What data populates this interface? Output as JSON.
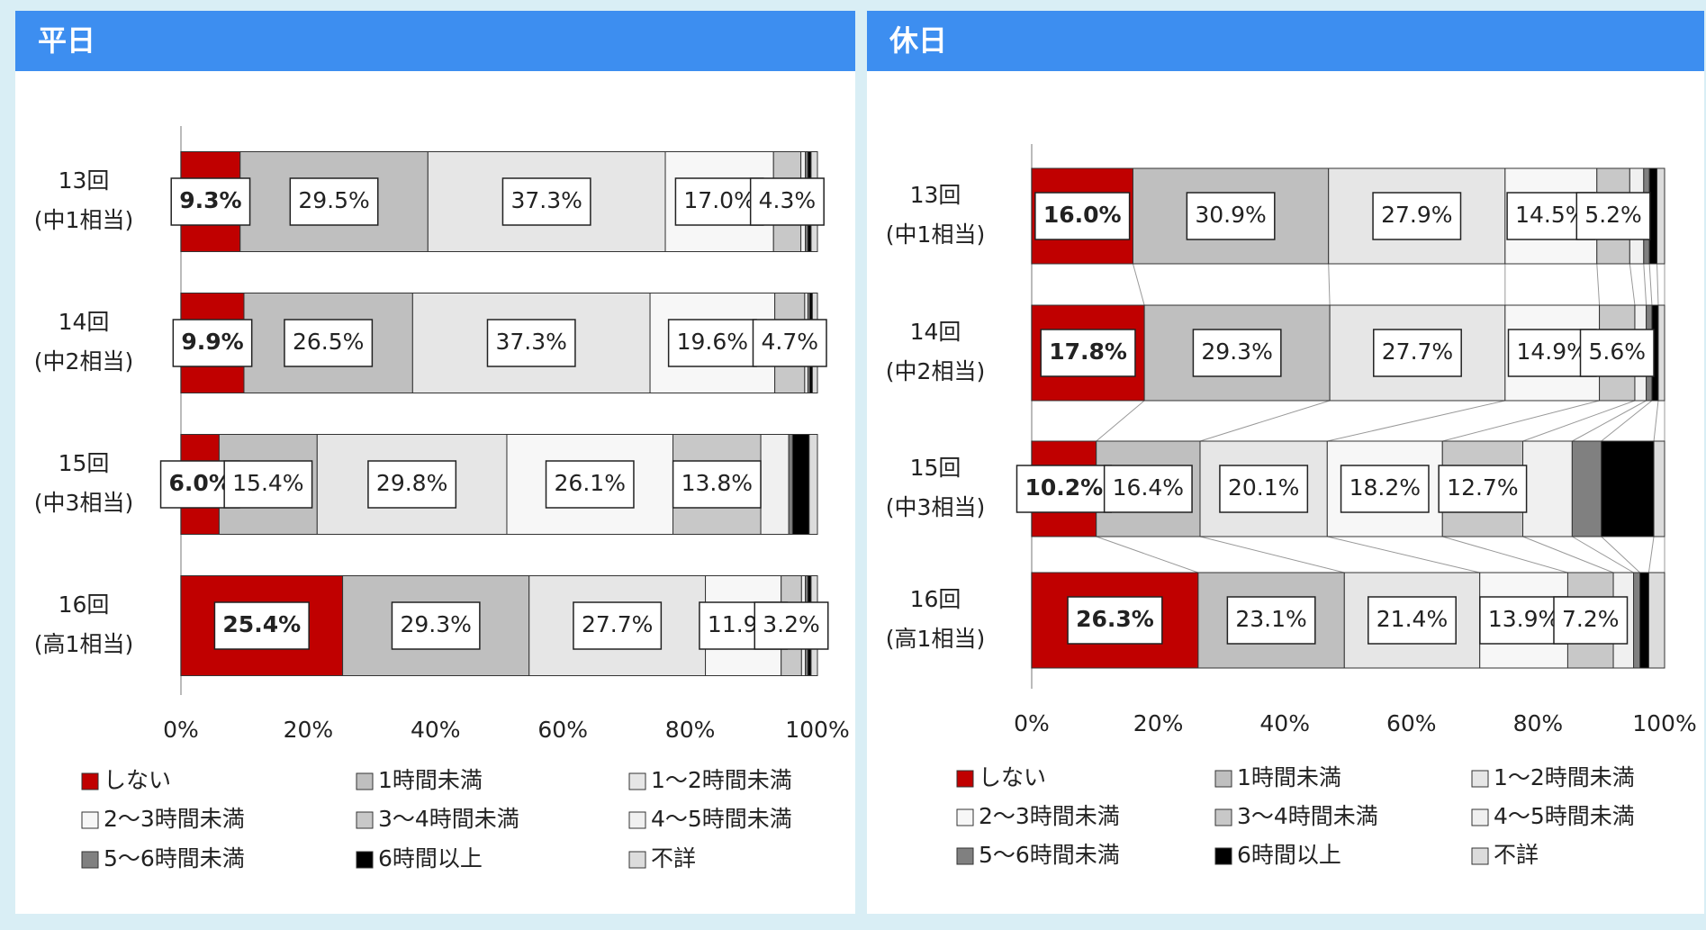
{
  "chart_data": [
    {
      "type": "bar",
      "orientation": "horizontal",
      "stacked": true,
      "connectors": false,
      "title": "平日",
      "categories": [
        [
          "13回",
          "(中1相当)"
        ],
        [
          "14回",
          "(中2相当)"
        ],
        [
          "15回",
          "(中3相当)"
        ],
        [
          "16回",
          "(高1相当)"
        ]
      ],
      "xlim": [
        0,
        100
      ],
      "xticks": [
        {
          "value": 0,
          "label": "0%"
        },
        {
          "value": 20,
          "label": "20%"
        },
        {
          "value": 40,
          "label": "40%"
        },
        {
          "value": 60,
          "label": "60%"
        },
        {
          "value": 80,
          "label": "80%"
        },
        {
          "value": 100,
          "label": "100%"
        }
      ],
      "series": [
        {
          "name": "しない",
          "color": "#c00000",
          "values": [
            9.3,
            9.9,
            6.0,
            25.4
          ],
          "value_labels": [
            "9.3%",
            "9.9%",
            "6.0%",
            "25.4%"
          ]
        },
        {
          "name": "1時間未満",
          "color": "#bfbfbf",
          "values": [
            29.5,
            26.5,
            15.4,
            29.3
          ],
          "value_labels": [
            "29.5%",
            "26.5%",
            "15.4%",
            "29.3%"
          ]
        },
        {
          "name": "1～2時間未満",
          "color": "#e6e6e6",
          "values": [
            37.3,
            37.3,
            29.8,
            27.7
          ],
          "value_labels": [
            "37.3%",
            "37.3%",
            "29.8%",
            "27.7%"
          ]
        },
        {
          "name": "2～3時間未満",
          "color": "#f7f7f7",
          "values": [
            17.0,
            19.6,
            26.1,
            11.9
          ],
          "value_labels": [
            "17.0%",
            "19.6%",
            "26.1%",
            "11.9%"
          ]
        },
        {
          "name": "3～4時間未満",
          "color": "#c8c8c8",
          "values": [
            4.3,
            4.7,
            13.8,
            3.2
          ],
          "value_labels": [
            "4.3%",
            "4.7%",
            "13.8%",
            "3.2%"
          ]
        },
        {
          "name": "4～5時間未満",
          "color": "#f0f0f0",
          "values": [
            0.7,
            0.5,
            4.4,
            0.6
          ],
          "value_labels": [
            null,
            null,
            null,
            null
          ]
        },
        {
          "name": "5～6時間未満",
          "color": "#808080",
          "values": [
            0.4,
            0.3,
            0.6,
            0.4
          ],
          "value_labels": [
            null,
            null,
            null,
            null
          ]
        },
        {
          "name": "6時間以上",
          "color": "#000000",
          "values": [
            0.5,
            0.4,
            2.6,
            0.5
          ],
          "value_labels": [
            null,
            null,
            null,
            null
          ]
        },
        {
          "name": "不詳",
          "color": "#dcdcdc",
          "values": [
            1.0,
            0.8,
            1.3,
            1.0
          ],
          "value_labels": [
            null,
            null,
            null,
            null
          ]
        }
      ]
    },
    {
      "type": "bar",
      "orientation": "horizontal",
      "stacked": true,
      "connectors": true,
      "title": "休日",
      "categories": [
        [
          "13回",
          "(中1相当)"
        ],
        [
          "14回",
          "(中2相当)"
        ],
        [
          "15回",
          "(中3相当)"
        ],
        [
          "16回",
          "(高1相当)"
        ]
      ],
      "xlim": [
        0,
        100
      ],
      "xticks": [
        {
          "value": 0,
          "label": "0%"
        },
        {
          "value": 20,
          "label": "20%"
        },
        {
          "value": 40,
          "label": "40%"
        },
        {
          "value": 60,
          "label": "60%"
        },
        {
          "value": 80,
          "label": "80%"
        },
        {
          "value": 100,
          "label": "100%"
        }
      ],
      "series": [
        {
          "name": "しない",
          "color": "#c00000",
          "values": [
            16.0,
            17.8,
            10.2,
            26.3
          ],
          "value_labels": [
            "16.0%",
            "17.8%",
            "10.2%",
            "26.3%"
          ]
        },
        {
          "name": "1時間未満",
          "color": "#bfbfbf",
          "values": [
            30.9,
            29.3,
            16.4,
            23.1
          ],
          "value_labels": [
            "30.9%",
            "29.3%",
            "16.4%",
            "23.1%"
          ]
        },
        {
          "name": "1～2時間未満",
          "color": "#e6e6e6",
          "values": [
            27.9,
            27.7,
            20.1,
            21.4
          ],
          "value_labels": [
            "27.9%",
            "27.7%",
            "20.1%",
            "21.4%"
          ]
        },
        {
          "name": "2～3時間未満",
          "color": "#f7f7f7",
          "values": [
            14.5,
            14.9,
            18.2,
            13.9
          ],
          "value_labels": [
            "14.5%",
            "14.9%",
            "18.2%",
            "13.9%"
          ]
        },
        {
          "name": "3～4時間未満",
          "color": "#c8c8c8",
          "values": [
            5.2,
            5.6,
            12.7,
            7.2
          ],
          "value_labels": [
            "5.2%",
            "5.6%",
            "12.7%",
            "7.2%"
          ]
        },
        {
          "name": "4～5時間未満",
          "color": "#f0f0f0",
          "values": [
            2.2,
            1.8,
            7.8,
            3.2
          ],
          "value_labels": [
            null,
            null,
            null,
            null
          ]
        },
        {
          "name": "5～6時間未満",
          "color": "#808080",
          "values": [
            0.9,
            0.9,
            4.6,
            1.0
          ],
          "value_labels": [
            null,
            null,
            null,
            null
          ]
        },
        {
          "name": "6時間以上",
          "color": "#000000",
          "values": [
            1.2,
            1.0,
            8.3,
            1.4
          ],
          "value_labels": [
            null,
            null,
            null,
            null
          ]
        },
        {
          "name": "不詳",
          "color": "#dcdcdc",
          "values": [
            1.2,
            1.0,
            1.7,
            2.5
          ],
          "value_labels": [
            null,
            null,
            null,
            null
          ]
        }
      ]
    }
  ]
}
